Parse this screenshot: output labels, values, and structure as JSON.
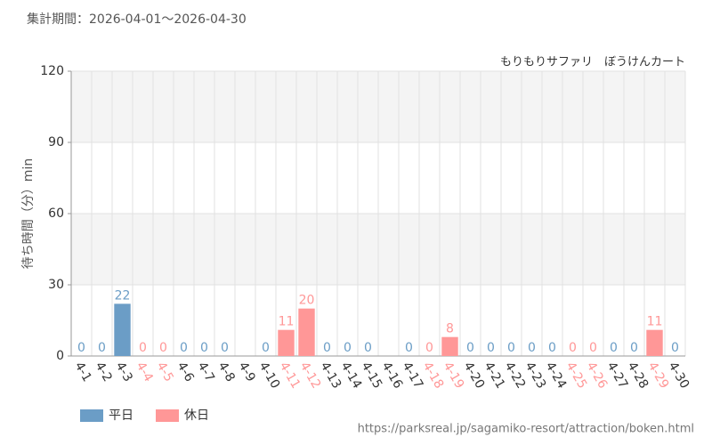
{
  "chart_data": {
    "type": "bar",
    "subtitle": "集計期間：2026-04-01～2026-04-30",
    "title": "もりもりサファリ　ぼうけんカート",
    "y_label": "待ち時間（分）min",
    "source": "https://parksreal.jp/sagamiko-resort/attraction/boken.html",
    "categories": [
      "4-1",
      "4-2",
      "4-3",
      "4-4",
      "4-5",
      "4-6",
      "4-7",
      "4-8",
      "4-9",
      "4-10",
      "4-11",
      "4-12",
      "4-13",
      "4-14",
      "4-15",
      "4-16",
      "4-17",
      "4-18",
      "4-19",
      "4-20",
      "4-21",
      "4-22",
      "4-23",
      "4-24",
      "4-25",
      "4-26",
      "4-27",
      "4-28",
      "4-29",
      "4-30"
    ],
    "series": [
      {
        "name": "平日",
        "color": "#6b9dc6",
        "values": [
          0,
          0,
          22,
          null,
          null,
          0,
          0,
          0,
          null,
          0,
          null,
          null,
          0,
          0,
          0,
          null,
          0,
          null,
          null,
          0,
          0,
          0,
          0,
          0,
          null,
          null,
          0,
          0,
          null,
          0
        ]
      },
      {
        "name": "休日",
        "color": "#ff9797",
        "values": [
          null,
          null,
          null,
          0,
          0,
          null,
          null,
          null,
          null,
          null,
          11,
          20,
          null,
          null,
          null,
          null,
          null,
          0,
          8,
          null,
          null,
          null,
          null,
          null,
          0,
          0,
          null,
          null,
          11,
          null
        ]
      }
    ],
    "ylim": [
      0,
      120
    ],
    "yticks": [
      0,
      30,
      60,
      90,
      120
    ],
    "grid": true,
    "legend": "bottom-left"
  }
}
